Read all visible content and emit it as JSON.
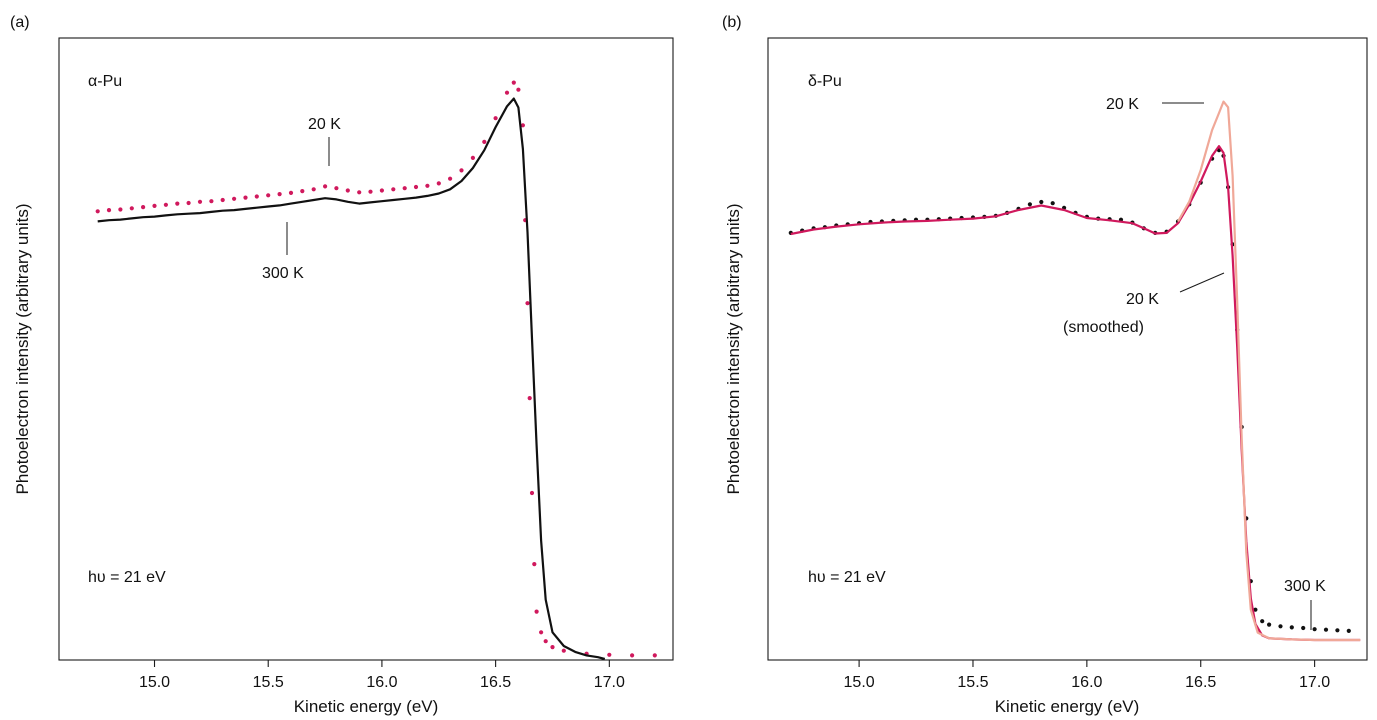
{
  "chart_data": [
    {
      "type": "line",
      "panel_label": "(a)",
      "material_label": "α-Pu",
      "photon_energy_label": "hυ = 21 eV",
      "xlabel": "Kinetic energy (eV)",
      "ylabel": "Photoelectron intensity (arbitrary units)",
      "xlim": [
        14.58,
        17.28
      ],
      "ylim": [
        0,
        1
      ],
      "xticks": [
        "15.0",
        "15.5",
        "16.0",
        "16.5",
        "17.0"
      ],
      "grid": false,
      "legend": "none",
      "series": [
        {
          "name": "20 K",
          "style": "dots",
          "color": "#d0195d",
          "points": [
            [
              14.75,
              0.755
            ],
            [
              14.8,
              0.757
            ],
            [
              14.85,
              0.758
            ],
            [
              14.9,
              0.76
            ],
            [
              14.95,
              0.762
            ],
            [
              15.0,
              0.764
            ],
            [
              15.05,
              0.766
            ],
            [
              15.1,
              0.768
            ],
            [
              15.15,
              0.769
            ],
            [
              15.2,
              0.771
            ],
            [
              15.25,
              0.772
            ],
            [
              15.3,
              0.774
            ],
            [
              15.35,
              0.776
            ],
            [
              15.4,
              0.778
            ],
            [
              15.45,
              0.78
            ],
            [
              15.5,
              0.782
            ],
            [
              15.55,
              0.784
            ],
            [
              15.6,
              0.786
            ],
            [
              15.65,
              0.789
            ],
            [
              15.7,
              0.792
            ],
            [
              15.75,
              0.797
            ],
            [
              15.8,
              0.794
            ],
            [
              15.85,
              0.79
            ],
            [
              15.9,
              0.787
            ],
            [
              15.95,
              0.788
            ],
            [
              16.0,
              0.79
            ],
            [
              16.05,
              0.792
            ],
            [
              16.1,
              0.794
            ],
            [
              16.15,
              0.796
            ],
            [
              16.2,
              0.798
            ],
            [
              16.25,
              0.802
            ],
            [
              16.3,
              0.81
            ],
            [
              16.35,
              0.824
            ],
            [
              16.4,
              0.845
            ],
            [
              16.45,
              0.872
            ],
            [
              16.5,
              0.912
            ],
            [
              16.55,
              0.955
            ],
            [
              16.58,
              0.972
            ],
            [
              16.6,
              0.96
            ],
            [
              16.62,
              0.9
            ],
            [
              16.63,
              0.74
            ],
            [
              16.64,
              0.6
            ],
            [
              16.65,
              0.44
            ],
            [
              16.66,
              0.28
            ],
            [
              16.67,
              0.16
            ],
            [
              16.68,
              0.08
            ],
            [
              16.7,
              0.045
            ],
            [
              16.72,
              0.03
            ],
            [
              16.75,
              0.02
            ],
            [
              16.8,
              0.014
            ],
            [
              16.9,
              0.009
            ],
            [
              17.0,
              0.007
            ],
            [
              17.1,
              0.006
            ],
            [
              17.2,
              0.006
            ]
          ]
        },
        {
          "name": "300 K",
          "style": "line",
          "color": "#111111",
          "points": [
            [
              14.75,
              0.738
            ],
            [
              14.8,
              0.74
            ],
            [
              14.85,
              0.741
            ],
            [
              14.9,
              0.743
            ],
            [
              14.95,
              0.745
            ],
            [
              15.0,
              0.746
            ],
            [
              15.05,
              0.748
            ],
            [
              15.1,
              0.75
            ],
            [
              15.15,
              0.751
            ],
            [
              15.2,
              0.752
            ],
            [
              15.25,
              0.754
            ],
            [
              15.3,
              0.756
            ],
            [
              15.35,
              0.757
            ],
            [
              15.4,
              0.759
            ],
            [
              15.45,
              0.761
            ],
            [
              15.5,
              0.763
            ],
            [
              15.55,
              0.765
            ],
            [
              15.6,
              0.768
            ],
            [
              15.65,
              0.771
            ],
            [
              15.7,
              0.774
            ],
            [
              15.75,
              0.777
            ],
            [
              15.8,
              0.775
            ],
            [
              15.85,
              0.771
            ],
            [
              15.9,
              0.768
            ],
            [
              15.95,
              0.77
            ],
            [
              16.0,
              0.772
            ],
            [
              16.05,
              0.774
            ],
            [
              16.1,
              0.776
            ],
            [
              16.15,
              0.778
            ],
            [
              16.2,
              0.781
            ],
            [
              16.25,
              0.785
            ],
            [
              16.3,
              0.792
            ],
            [
              16.35,
              0.806
            ],
            [
              16.4,
              0.828
            ],
            [
              16.45,
              0.858
            ],
            [
              16.5,
              0.897
            ],
            [
              16.55,
              0.932
            ],
            [
              16.58,
              0.945
            ],
            [
              16.6,
              0.93
            ],
            [
              16.62,
              0.86
            ],
            [
              16.64,
              0.72
            ],
            [
              16.66,
              0.54
            ],
            [
              16.68,
              0.36
            ],
            [
              16.7,
              0.2
            ],
            [
              16.72,
              0.1
            ],
            [
              16.75,
              0.045
            ],
            [
              16.8,
              0.022
            ],
            [
              16.85,
              0.012
            ],
            [
              16.9,
              0.006
            ],
            [
              16.95,
              0.003
            ],
            [
              16.98,
              0.0
            ]
          ]
        }
      ],
      "annotations": [
        {
          "text": "20 K",
          "x": 15.77,
          "y": 0.8
        },
        {
          "text": "300 K",
          "x": 15.57,
          "y": 0.76
        }
      ]
    },
    {
      "type": "line",
      "panel_label": "(b)",
      "material_label": "δ-Pu",
      "photon_energy_label": "hυ = 21 eV",
      "xlabel": "Kinetic energy (eV)",
      "ylabel": "Photoelectron intensity (arbitrary units)",
      "xlim": [
        14.6,
        17.23
      ],
      "ylim": [
        0,
        1
      ],
      "xticks": [
        "15.0",
        "15.5",
        "16.0",
        "16.5",
        "17.0"
      ],
      "grid": false,
      "legend": "none",
      "series": [
        {
          "name": "300 K",
          "style": "dots",
          "color": "#111111",
          "points": [
            [
              14.7,
              0.72
            ],
            [
              14.75,
              0.724
            ],
            [
              14.8,
              0.728
            ],
            [
              14.85,
              0.73
            ],
            [
              14.9,
              0.733
            ],
            [
              14.95,
              0.735
            ],
            [
              15.0,
              0.737
            ],
            [
              15.05,
              0.739
            ],
            [
              15.1,
              0.74
            ],
            [
              15.15,
              0.741
            ],
            [
              15.2,
              0.742
            ],
            [
              15.25,
              0.743
            ],
            [
              15.3,
              0.743
            ],
            [
              15.35,
              0.744
            ],
            [
              15.4,
              0.745
            ],
            [
              15.45,
              0.746
            ],
            [
              15.5,
              0.747
            ],
            [
              15.55,
              0.748
            ],
            [
              15.6,
              0.75
            ],
            [
              15.65,
              0.755
            ],
            [
              15.7,
              0.762
            ],
            [
              15.75,
              0.77
            ],
            [
              15.8,
              0.774
            ],
            [
              15.85,
              0.772
            ],
            [
              15.9,
              0.764
            ],
            [
              15.95,
              0.755
            ],
            [
              16.0,
              0.748
            ],
            [
              16.05,
              0.745
            ],
            [
              16.1,
              0.744
            ],
            [
              16.15,
              0.743
            ],
            [
              16.2,
              0.738
            ],
            [
              16.25,
              0.728
            ],
            [
              16.3,
              0.72
            ],
            [
              16.35,
              0.722
            ],
            [
              16.4,
              0.74
            ],
            [
              16.45,
              0.77
            ],
            [
              16.5,
              0.808
            ],
            [
              16.55,
              0.85
            ],
            [
              16.58,
              0.865
            ],
            [
              16.6,
              0.855
            ],
            [
              16.62,
              0.8
            ],
            [
              16.64,
              0.7
            ],
            [
              16.66,
              0.55
            ],
            [
              16.68,
              0.38
            ],
            [
              16.7,
              0.22
            ],
            [
              16.72,
              0.11
            ],
            [
              16.74,
              0.06
            ],
            [
              16.77,
              0.04
            ],
            [
              16.8,
              0.034
            ],
            [
              16.85,
              0.031
            ],
            [
              16.9,
              0.029
            ],
            [
              16.95,
              0.028
            ],
            [
              17.0,
              0.026
            ],
            [
              17.05,
              0.025
            ],
            [
              17.1,
              0.024
            ],
            [
              17.15,
              0.023
            ]
          ]
        },
        {
          "name": "20 K (smoothed)",
          "style": "line",
          "color": "#d0195d",
          "points": [
            [
              14.7,
              0.718
            ],
            [
              14.8,
              0.726
            ],
            [
              14.9,
              0.731
            ],
            [
              15.0,
              0.735
            ],
            [
              15.1,
              0.738
            ],
            [
              15.2,
              0.74
            ],
            [
              15.3,
              0.741
            ],
            [
              15.4,
              0.743
            ],
            [
              15.5,
              0.745
            ],
            [
              15.6,
              0.749
            ],
            [
              15.7,
              0.76
            ],
            [
              15.8,
              0.768
            ],
            [
              15.9,
              0.76
            ],
            [
              16.0,
              0.746
            ],
            [
              16.1,
              0.742
            ],
            [
              16.2,
              0.737
            ],
            [
              16.25,
              0.728
            ],
            [
              16.3,
              0.719
            ],
            [
              16.35,
              0.72
            ],
            [
              16.4,
              0.737
            ],
            [
              16.45,
              0.77
            ],
            [
              16.5,
              0.81
            ],
            [
              16.55,
              0.855
            ],
            [
              16.58,
              0.872
            ],
            [
              16.6,
              0.86
            ],
            [
              16.62,
              0.8
            ],
            [
              16.64,
              0.68
            ],
            [
              16.66,
              0.52
            ],
            [
              16.68,
              0.34
            ],
            [
              16.7,
              0.18
            ],
            [
              16.72,
              0.08
            ],
            [
              16.74,
              0.035
            ],
            [
              16.77,
              0.015
            ],
            [
              16.8,
              0.01
            ],
            [
              16.9,
              0.008
            ],
            [
              17.0,
              0.007
            ],
            [
              17.1,
              0.007
            ],
            [
              17.2,
              0.007
            ]
          ]
        },
        {
          "name": "20 K",
          "style": "line",
          "color": "#f0a898",
          "points": [
            [
              16.4,
              0.74
            ],
            [
              16.45,
              0.775
            ],
            [
              16.5,
              0.83
            ],
            [
              16.55,
              0.9
            ],
            [
              16.58,
              0.93
            ],
            [
              16.6,
              0.95
            ],
            [
              16.62,
              0.94
            ],
            [
              16.64,
              0.82
            ],
            [
              16.66,
              0.6
            ],
            [
              16.68,
              0.36
            ],
            [
              16.7,
              0.16
            ],
            [
              16.72,
              0.06
            ],
            [
              16.75,
              0.02
            ],
            [
              16.8,
              0.01
            ],
            [
              16.9,
              0.008
            ],
            [
              17.0,
              0.007
            ],
            [
              17.1,
              0.007
            ],
            [
              17.2,
              0.007
            ]
          ]
        }
      ],
      "annotations": [
        {
          "text": "20 K",
          "x": 16.57,
          "y": 0.92
        },
        {
          "text": "20 K",
          "text2": "(smoothed)",
          "x": 16.65,
          "y": 0.58
        },
        {
          "text": "300 K",
          "x": 17.0,
          "y": 0.028
        }
      ]
    }
  ]
}
